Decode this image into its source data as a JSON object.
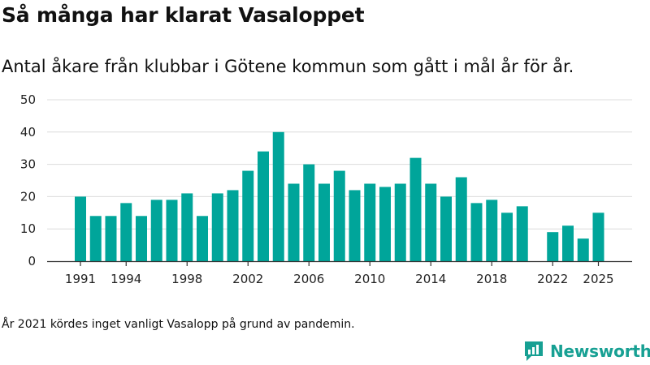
{
  "header": {
    "title": "Så många har klarat Vasaloppet",
    "subtitle": "Antal åkare från klubbar i Götene kommun som gått i mål år för år."
  },
  "footnote": "År 2021 kördes inget vanligt Vasalopp på grund av pandemin.",
  "brand": {
    "name": "Newsworthy",
    "icon": "newsworthy-logo-icon",
    "color": "#17a093"
  },
  "chart_data": {
    "type": "bar",
    "title": "Så många har klarat Vasaloppet",
    "xlabel": "",
    "ylabel": "",
    "ylim": [
      0,
      50
    ],
    "yticks": [
      "0",
      "10",
      "20",
      "30",
      "40",
      "50"
    ],
    "xtick_labels": [
      "1991",
      "1994",
      "1998",
      "2002",
      "2006",
      "2010",
      "2014",
      "2018",
      "2022",
      "2025"
    ],
    "grid": true,
    "bar_color": "#00a59a",
    "categories": [
      1991,
      1992,
      1993,
      1994,
      1995,
      1996,
      1997,
      1998,
      1999,
      2000,
      2001,
      2002,
      2003,
      2004,
      2005,
      2006,
      2007,
      2008,
      2009,
      2010,
      2011,
      2012,
      2013,
      2014,
      2015,
      2016,
      2017,
      2018,
      2019,
      2020,
      2021,
      2022,
      2023,
      2024,
      2025
    ],
    "values": [
      20,
      14,
      14,
      18,
      14,
      19,
      19,
      21,
      14,
      21,
      22,
      28,
      34,
      40,
      24,
      30,
      24,
      28,
      22,
      24,
      23,
      24,
      32,
      24,
      20,
      26,
      18,
      19,
      15,
      17,
      null,
      9,
      11,
      7,
      15
    ]
  }
}
